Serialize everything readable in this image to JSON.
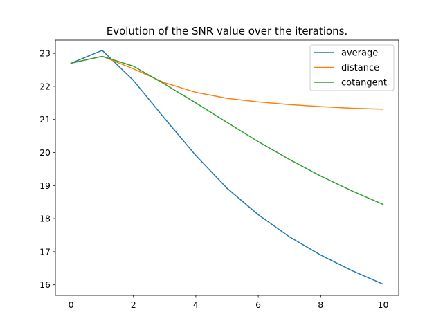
{
  "chart_data": {
    "type": "line",
    "title": "Evolution of the SNR value over the iterations.",
    "xlabel": "",
    "ylabel": "",
    "xlim": [
      -0.5,
      10.5
    ],
    "ylim": [
      15.68,
      23.4
    ],
    "x_ticks": [
      0,
      2,
      4,
      6,
      8,
      10
    ],
    "y_ticks": [
      16,
      17,
      18,
      19,
      20,
      21,
      22,
      23
    ],
    "x": [
      0,
      1,
      2,
      3,
      4,
      5,
      6,
      7,
      8,
      9,
      10
    ],
    "series": [
      {
        "name": "average",
        "color": "#1f77b4",
        "values": [
          22.7,
          23.09,
          22.18,
          21.03,
          19.91,
          18.92,
          18.12,
          17.45,
          16.9,
          16.43,
          16.02
        ]
      },
      {
        "name": "distance",
        "color": "#ff7f0e",
        "values": [
          22.7,
          22.91,
          22.53,
          22.11,
          21.82,
          21.64,
          21.53,
          21.45,
          21.39,
          21.34,
          21.31
        ]
      },
      {
        "name": "cotangent",
        "color": "#2ca02c",
        "values": [
          22.7,
          22.91,
          22.61,
          22.07,
          21.5,
          20.91,
          20.33,
          19.79,
          19.29,
          18.84,
          18.43
        ]
      }
    ],
    "grid": false,
    "legend_position": "top-right"
  }
}
